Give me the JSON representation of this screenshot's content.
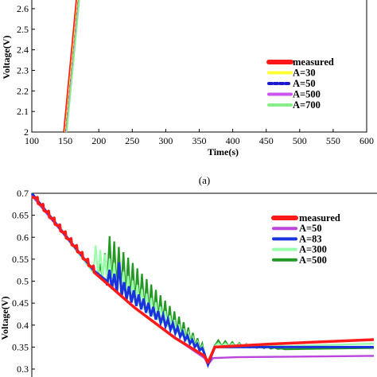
{
  "chart_data": [
    {
      "type": "line",
      "panel": "top",
      "xlabel": "Time(s)",
      "ylabel": "Voltage(V)",
      "xlim": [
        100,
        600
      ],
      "ylim": [
        2,
        2.65
      ],
      "xticks": [
        "100",
        "150",
        "200",
        "250",
        "300",
        "350",
        "400",
        "450",
        "500",
        "550",
        "600"
      ],
      "yticks": [
        "2",
        "2.1",
        "2.2",
        "2.3",
        "2.4",
        "2.5",
        "2.6"
      ],
      "legend_position": "right",
      "series": [
        {
          "name": "measured",
          "color": "#ff1a1a",
          "style": "solid",
          "x": [
            149,
            168
          ],
          "y": [
            2,
            2.65
          ]
        },
        {
          "name": "A=30",
          "color": "#ffff33",
          "style": "solid",
          "x": [
            150.5,
            169.5
          ],
          "y": [
            2,
            2.65
          ]
        },
        {
          "name": "A=50",
          "color": "#1a1acc",
          "style": "dashed",
          "x": [
            151,
            170
          ],
          "y": [
            2,
            2.65
          ]
        },
        {
          "name": "A=500",
          "color": "#cc55ee",
          "style": "solid",
          "x": [
            151.5,
            170.5
          ],
          "y": [
            2,
            2.65
          ]
        },
        {
          "name": "A=700",
          "color": "#88ee88",
          "style": "solid",
          "x": [
            152,
            171
          ],
          "y": [
            2,
            2.65
          ]
        }
      ]
    },
    {
      "type": "line",
      "panel": "bottom",
      "xlabel": "",
      "ylabel": "Voltage(V)",
      "ylim": [
        0.3,
        0.7
      ],
      "yticks": [
        "0.3",
        "0.35",
        "0.4",
        "0.45",
        "0.5",
        "0.55",
        "0.6",
        "0.65",
        "0.7"
      ],
      "legend_position": "top-right",
      "series": [
        {
          "name": "measured",
          "color": "#ff1a1a"
        },
        {
          "name": "A=50",
          "color": "#bb44dd"
        },
        {
          "name": "A=83",
          "color": "#1a33dd"
        },
        {
          "name": "A=300",
          "color": "#99ffaa"
        },
        {
          "name": "A=500",
          "color": "#229922"
        }
      ]
    }
  ],
  "panel_caption": "(a)"
}
